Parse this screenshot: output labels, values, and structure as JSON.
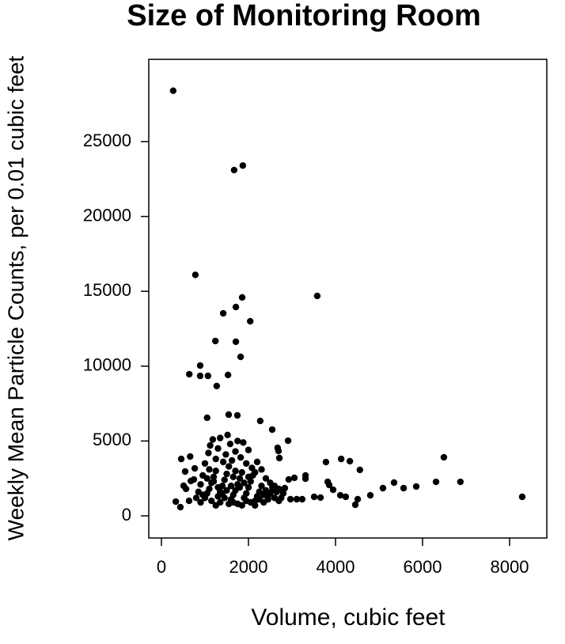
{
  "chart_data": {
    "type": "scatter",
    "title": "Size of Monitoring Room",
    "xlabel": "Volume, cubic feet",
    "ylabel": "Weekly Mean Particle Counts, per 0.01 cubic feet",
    "color": "#000000",
    "xlim": [
      -291,
      8855
    ],
    "ylim": [
      -1480,
      30497
    ],
    "xticks": [
      0,
      2000,
      4000,
      6000,
      8000
    ],
    "yticks": [
      0,
      5000,
      10000,
      15000,
      20000,
      25000
    ],
    "x": [
      270,
      1670,
      1870,
      780,
      1855,
      3580,
      1710,
      1420,
      2040,
      1240,
      1710,
      1820,
      890,
      640,
      890,
      1070,
      1530,
      1270,
      1050,
      1545,
      1745,
      2270,
      2545,
      660,
      455,
      2910,
      2670,
      2690,
      2710,
      6490,
      4130,
      4330,
      3780,
      4560,
      6310,
      6870,
      8290,
      5855,
      5565,
      5345,
      5090,
      4800,
      4510,
      4455,
      4235,
      4110,
      3945,
      3855,
      3820,
      3655,
      3510,
      3310,
      3310,
      3110,
      3055,
      3235,
      2965,
      2835,
      2925,
      330,
      435,
      635,
      565,
      675,
      510,
      545,
      745,
      765,
      1000,
      1050,
      1100,
      1150,
      1200,
      1250,
      1300,
      1350,
      1400,
      1450,
      1500,
      1550,
      1600,
      1650,
      1700,
      1750,
      1800,
      1850,
      1900,
      1950,
      2000,
      2050,
      2100,
      2150,
      2200,
      2250,
      2300,
      2350,
      2400,
      2450,
      2500,
      2550,
      2600,
      2650,
      2700,
      900,
      950,
      1000,
      1080,
      1120,
      1180,
      1250,
      1300,
      1350,
      1420,
      1480,
      1520,
      1580,
      1620,
      1700,
      1750,
      1820,
      1880,
      1950,
      2000,
      2080,
      2150,
      2200,
      2300,
      2400,
      2500,
      2600,
      2700,
      800,
      850,
      900,
      950,
      1050,
      1150,
      1250,
      1350,
      1450,
      1550,
      1650,
      1750,
      1850,
      1950,
      2050,
      2150,
      2250,
      2350,
      2450,
      1600,
      1650,
      1700,
      1500,
      1400,
      1800,
      1900,
      2000,
      1100,
      1200,
      1300,
      2550,
      2800,
      2750
    ],
    "values": [
      28400,
      23100,
      23400,
      16100,
      14590,
      14690,
      13950,
      13530,
      13000,
      11680,
      11630,
      10620,
      10040,
      9460,
      9350,
      9350,
      9410,
      8670,
      6550,
      6760,
      6710,
      6340,
      5760,
      3960,
      3800,
      5020,
      4540,
      4330,
      3860,
      3910,
      3800,
      3650,
      3590,
      3070,
      2270,
      2270,
      1270,
      1960,
      1850,
      2220,
      1850,
      1370,
      1110,
      740,
      1270,
      1370,
      1740,
      2060,
      2270,
      1220,
      1270,
      2480,
      2700,
      1110,
      2540,
      1110,
      1110,
      1850,
      2430,
      950,
      580,
      1000,
      1800,
      2330,
      2010,
      2960,
      2430,
      3170,
      1200,
      1500,
      1800,
      2200,
      2600,
      3000,
      1300,
      1600,
      2000,
      2400,
      2800,
      3300,
      1100,
      1400,
      1700,
      2100,
      2500,
      2900,
      1200,
      1500,
      1900,
      2300,
      2700,
      1000,
      1300,
      1600,
      2000,
      1400,
      1700,
      1100,
      1500,
      1900,
      1200,
      1600,
      1000,
      2100,
      2700,
      3500,
      4200,
      4700,
      5100,
      3800,
      4500,
      5200,
      3600,
      4100,
      5400,
      4800,
      3700,
      4300,
      5000,
      3900,
      4900,
      3500,
      4400,
      3200,
      2900,
      3600,
      3100,
      2500,
      2200,
      2000,
      1800,
      1200,
      1600,
      900,
      1400,
      2500,
      1000,
      700,
      900,
      1200,
      800,
      900,
      800,
      700,
      1000,
      900,
      700,
      1100,
      900,
      1300,
      2000,
      2600,
      3000,
      1700,
      1500,
      1900,
      2200,
      2600,
      3100,
      2300,
      1900,
      1700,
      1500,
      1200
    ]
  }
}
